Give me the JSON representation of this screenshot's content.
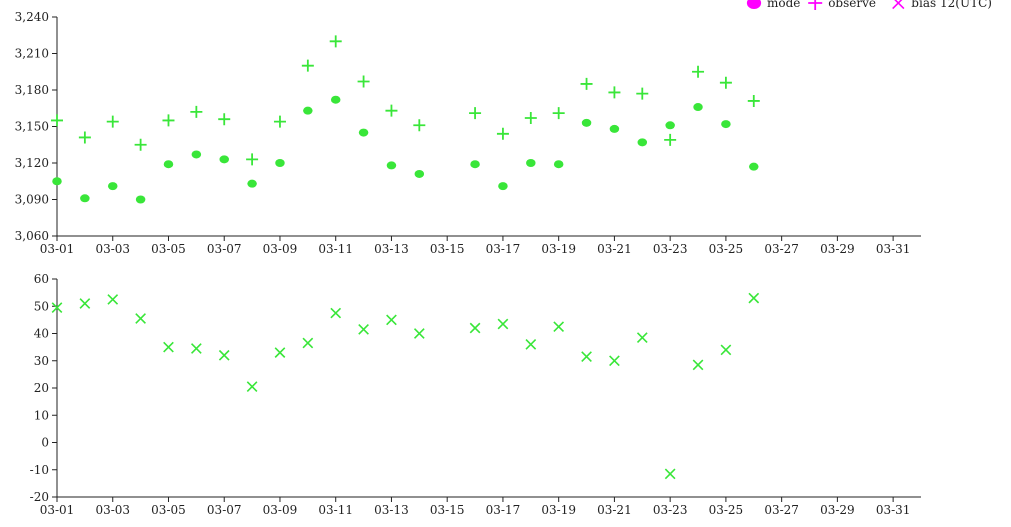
{
  "legend": {
    "items": [
      {
        "label": "mode",
        "symbol": "circle",
        "color": "#ff00ff"
      },
      {
        "label": "observe",
        "symbol": "plus",
        "color": "#ff00ff"
      },
      {
        "label": "bias",
        "symbol": "cross",
        "color": "#ff00ff"
      }
    ],
    "note": "12(UTC)"
  },
  "colors": {
    "marker": "#39e639",
    "legend": "#ff00ff",
    "axis": "#222222"
  },
  "chart_data": [
    {
      "type": "scatter",
      "x_ticks": [
        "03-01",
        "03-03",
        "03-05",
        "03-07",
        "03-09",
        "03-11",
        "03-13",
        "03-15",
        "03-17",
        "03-19",
        "03-21",
        "03-23",
        "03-25",
        "03-27",
        "03-29",
        "03-31"
      ],
      "y_ticks": [
        "3,060",
        "3,090",
        "3,120",
        "3,150",
        "3,180",
        "3,210",
        "3,240"
      ],
      "xlim": [
        "03-01",
        "03-32"
      ],
      "ylim": [
        3060,
        3240
      ],
      "grid": false,
      "legend_position": "top-right",
      "series": [
        {
          "name": "mode",
          "marker": "circle",
          "points": [
            {
              "x": "03-01",
              "y": 3105
            },
            {
              "x": "03-02",
              "y": 3091
            },
            {
              "x": "03-03",
              "y": 3101
            },
            {
              "x": "03-04",
              "y": 3090
            },
            {
              "x": "03-05",
              "y": 3119
            },
            {
              "x": "03-06",
              "y": 3127
            },
            {
              "x": "03-07",
              "y": 3123
            },
            {
              "x": "03-08",
              "y": 3103
            },
            {
              "x": "03-09",
              "y": 3120
            },
            {
              "x": "03-10",
              "y": 3163
            },
            {
              "x": "03-11",
              "y": 3172
            },
            {
              "x": "03-12",
              "y": 3145
            },
            {
              "x": "03-13",
              "y": 3118
            },
            {
              "x": "03-14",
              "y": 3111
            },
            {
              "x": "03-16",
              "y": 3119
            },
            {
              "x": "03-17",
              "y": 3101
            },
            {
              "x": "03-18",
              "y": 3120
            },
            {
              "x": "03-19",
              "y": 3119
            },
            {
              "x": "03-20",
              "y": 3153
            },
            {
              "x": "03-21",
              "y": 3148
            },
            {
              "x": "03-22",
              "y": 3137
            },
            {
              "x": "03-23",
              "y": 3151
            },
            {
              "x": "03-24",
              "y": 3166
            },
            {
              "x": "03-25",
              "y": 3152
            },
            {
              "x": "03-26",
              "y": 3117
            }
          ]
        },
        {
          "name": "observe",
          "marker": "plus",
          "points": [
            {
              "x": "03-01",
              "y": 3155
            },
            {
              "x": "03-02",
              "y": 3141
            },
            {
              "x": "03-03",
              "y": 3154
            },
            {
              "x": "03-04",
              "y": 3135
            },
            {
              "x": "03-05",
              "y": 3155
            },
            {
              "x": "03-06",
              "y": 3162
            },
            {
              "x": "03-07",
              "y": 3156
            },
            {
              "x": "03-08",
              "y": 3123
            },
            {
              "x": "03-09",
              "y": 3154
            },
            {
              "x": "03-10",
              "y": 3200
            },
            {
              "x": "03-11",
              "y": 3220
            },
            {
              "x": "03-12",
              "y": 3187
            },
            {
              "x": "03-13",
              "y": 3163
            },
            {
              "x": "03-14",
              "y": 3151
            },
            {
              "x": "03-16",
              "y": 3161
            },
            {
              "x": "03-17",
              "y": 3144
            },
            {
              "x": "03-18",
              "y": 3157
            },
            {
              "x": "03-19",
              "y": 3161
            },
            {
              "x": "03-20",
              "y": 3185
            },
            {
              "x": "03-21",
              "y": 3178
            },
            {
              "x": "03-22",
              "y": 3177
            },
            {
              "x": "03-23",
              "y": 3139
            },
            {
              "x": "03-24",
              "y": 3195
            },
            {
              "x": "03-25",
              "y": 3186
            },
            {
              "x": "03-26",
              "y": 3171
            }
          ]
        }
      ]
    },
    {
      "type": "scatter",
      "x_ticks": [
        "03-01",
        "03-03",
        "03-05",
        "03-07",
        "03-09",
        "03-11",
        "03-13",
        "03-15",
        "03-17",
        "03-19",
        "03-21",
        "03-23",
        "03-25",
        "03-27",
        "03-29",
        "03-31"
      ],
      "y_ticks": [
        "-20",
        "-10",
        "0",
        "10",
        "20",
        "30",
        "40",
        "50",
        "60"
      ],
      "xlim": [
        "03-01",
        "03-32"
      ],
      "ylim": [
        -20,
        60
      ],
      "grid": false,
      "series": [
        {
          "name": "bias",
          "marker": "cross",
          "points": [
            {
              "x": "03-01",
              "y": 49.5
            },
            {
              "x": "03-02",
              "y": 51
            },
            {
              "x": "03-03",
              "y": 52.5
            },
            {
              "x": "03-04",
              "y": 45.5
            },
            {
              "x": "03-05",
              "y": 35
            },
            {
              "x": "03-06",
              "y": 34.5
            },
            {
              "x": "03-07",
              "y": 32
            },
            {
              "x": "03-08",
              "y": 20.5
            },
            {
              "x": "03-09",
              "y": 33
            },
            {
              "x": "03-10",
              "y": 36.5
            },
            {
              "x": "03-11",
              "y": 47.5
            },
            {
              "x": "03-12",
              "y": 41.5
            },
            {
              "x": "03-13",
              "y": 45
            },
            {
              "x": "03-14",
              "y": 40
            },
            {
              "x": "03-16",
              "y": 42
            },
            {
              "x": "03-17",
              "y": 43.5
            },
            {
              "x": "03-18",
              "y": 36
            },
            {
              "x": "03-19",
              "y": 42.5
            },
            {
              "x": "03-20",
              "y": 31.5
            },
            {
              "x": "03-21",
              "y": 30
            },
            {
              "x": "03-22",
              "y": 38.5
            },
            {
              "x": "03-23",
              "y": -11.5
            },
            {
              "x": "03-24",
              "y": 28.5
            },
            {
              "x": "03-25",
              "y": 34
            },
            {
              "x": "03-26",
              "y": 53
            }
          ]
        }
      ]
    }
  ]
}
